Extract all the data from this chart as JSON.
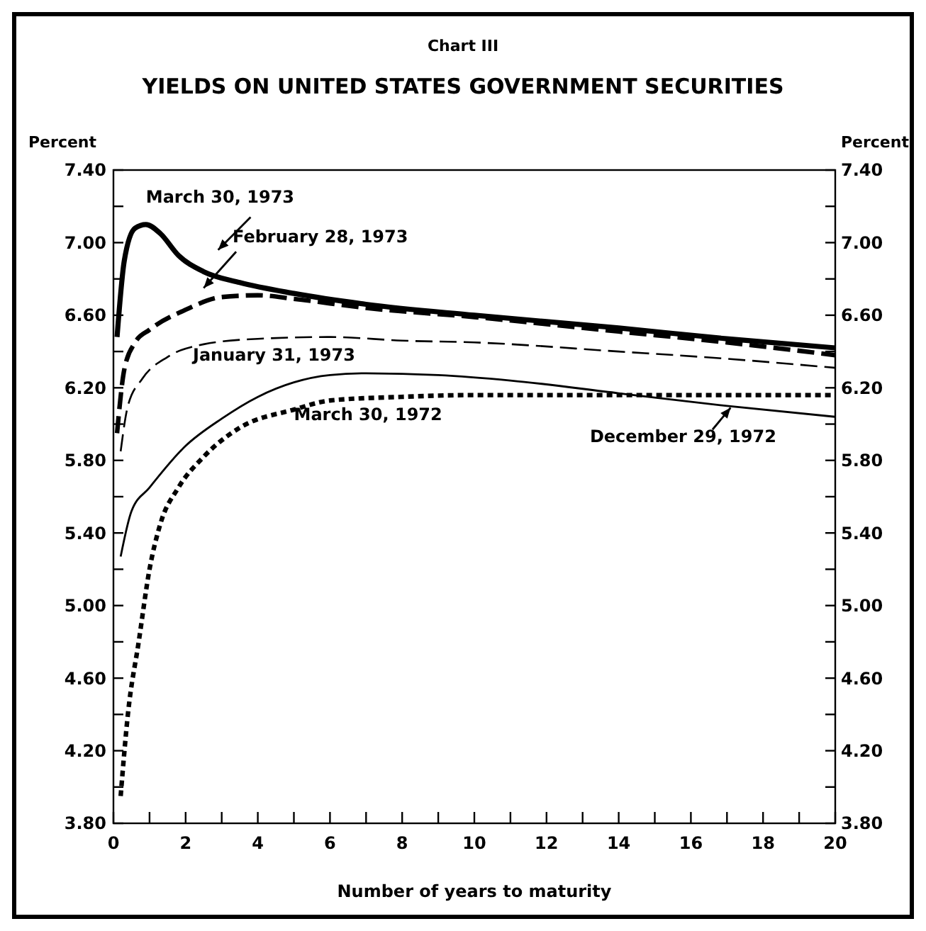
{
  "chart_data": {
    "type": "line",
    "subtitle": "Chart III",
    "title": "YIELDS ON UNITED STATES GOVERNMENT SECURITIES",
    "xlabel": "Number of years to maturity",
    "ylabel": "Percent",
    "y2label": "Percent",
    "xlim": [
      0,
      20
    ],
    "ylim": [
      3.8,
      7.4
    ],
    "y2lim": [
      3.8,
      7.4
    ],
    "xticks": [
      0,
      {
        "value": 1,
        "label": null
      },
      2,
      {
        "value": 3,
        "label": null
      },
      4,
      {
        "value": 5,
        "label": null
      },
      6,
      {
        "value": 7,
        "label": null
      },
      8,
      {
        "value": 9,
        "label": null
      },
      10,
      {
        "value": 11,
        "label": null
      },
      12,
      {
        "value": 13,
        "label": null
      },
      14,
      {
        "value": 15,
        "label": null
      },
      16,
      {
        "value": 17,
        "label": null
      },
      18,
      {
        "value": 19,
        "label": null
      },
      20
    ],
    "yticks": [
      {
        "value": 3.8,
        "label": "3.80"
      },
      {
        "value": 4.0,
        "label": null
      },
      {
        "value": 4.2,
        "label": "4.20"
      },
      {
        "value": 4.4,
        "label": null
      },
      {
        "value": 4.6,
        "label": "4.60"
      },
      {
        "value": 4.8,
        "label": null
      },
      {
        "value": 5.0,
        "label": "5.00"
      },
      {
        "value": 5.2,
        "label": null
      },
      {
        "value": 5.4,
        "label": "5.40"
      },
      {
        "value": 5.6,
        "label": null
      },
      {
        "value": 5.8,
        "label": "5.80"
      },
      {
        "value": 6.0,
        "label": null
      },
      {
        "value": 6.2,
        "label": "6.20"
      },
      {
        "value": 6.4,
        "label": null
      },
      {
        "value": 6.6,
        "label": "6.60"
      },
      {
        "value": 6.8,
        "label": null
      },
      {
        "value": 7.0,
        "label": "7.00"
      },
      {
        "value": 7.2,
        "label": null
      },
      {
        "value": 7.4,
        "label": "7.40"
      }
    ],
    "y2ticks": [
      {
        "value": 3.8,
        "label": "3.80"
      },
      {
        "value": 4.0,
        "label": null
      },
      {
        "value": 4.2,
        "label": "4.20"
      },
      {
        "value": 4.4,
        "label": null
      },
      {
        "value": 4.6,
        "label": "4.60"
      },
      {
        "value": 4.8,
        "label": null
      },
      {
        "value": 5.0,
        "label": "5.00"
      },
      {
        "value": 5.2,
        "label": null
      },
      {
        "value": 5.4,
        "label": "5.40"
      },
      {
        "value": 5.6,
        "label": null
      },
      {
        "value": 5.8,
        "label": "5.80"
      },
      {
        "value": 6.0,
        "label": null
      },
      {
        "value": 6.2,
        "label": "6.20"
      },
      {
        "value": 6.4,
        "label": null
      },
      {
        "value": 6.6,
        "label": "6.60"
      },
      {
        "value": 6.8,
        "label": null
      },
      {
        "value": 7.0,
        "label": "7.00"
      },
      {
        "value": 7.2,
        "label": null
      },
      {
        "value": 7.4,
        "label": "7.40"
      }
    ],
    "grid": false,
    "series": [
      {
        "name": "March 30, 1973",
        "color": "#000000",
        "line_style": "solid",
        "x": [
          0.1,
          0.3,
          0.6,
          0.9,
          1.3,
          1.8,
          2.5,
          3.5,
          5,
          7,
          10,
          14,
          17,
          20
        ],
        "values": [
          6.48,
          6.9,
          7.08,
          7.1,
          7.05,
          6.93,
          6.84,
          6.78,
          6.72,
          6.66,
          6.6,
          6.53,
          6.47,
          6.42
        ]
      },
      {
        "name": "February 28, 1973",
        "color": "#000000",
        "line_style": "dashed",
        "x": [
          0.1,
          0.3,
          0.6,
          1,
          2,
          3,
          4,
          5,
          7,
          10,
          14,
          17,
          20
        ],
        "values": [
          5.95,
          6.3,
          6.45,
          6.52,
          6.63,
          6.7,
          6.71,
          6.69,
          6.64,
          6.59,
          6.51,
          6.45,
          6.38
        ]
      },
      {
        "name": "January 31, 1973",
        "color": "#000000",
        "line_style": "dashed",
        "x": [
          0.2,
          0.4,
          0.8,
          1.5,
          2.5,
          4,
          6,
          8,
          10,
          14,
          17,
          20
        ],
        "values": [
          5.85,
          6.1,
          6.25,
          6.37,
          6.44,
          6.47,
          6.48,
          6.46,
          6.45,
          6.4,
          6.36,
          6.31
        ]
      },
      {
        "name": "December 29, 1972",
        "color": "#000000",
        "line_style": "solid",
        "x": [
          0.2,
          0.5,
          1,
          2,
          3,
          4,
          5,
          6,
          7,
          9,
          11,
          14,
          17,
          20
        ],
        "values": [
          5.27,
          5.52,
          5.65,
          5.88,
          6.03,
          6.15,
          6.23,
          6.27,
          6.28,
          6.27,
          6.24,
          6.17,
          6.1,
          6.04
        ]
      },
      {
        "name": "March 30, 1972",
        "color": "#000000",
        "line_style": "dotted",
        "x": [
          0.2,
          0.4,
          0.7,
          1,
          1.3,
          1.8,
          2.5,
          3.5,
          5,
          6,
          8,
          10,
          14,
          20
        ],
        "values": [
          3.95,
          4.4,
          4.8,
          5.2,
          5.45,
          5.65,
          5.82,
          5.98,
          6.08,
          6.13,
          6.15,
          6.16,
          6.16,
          6.16
        ]
      }
    ]
  }
}
